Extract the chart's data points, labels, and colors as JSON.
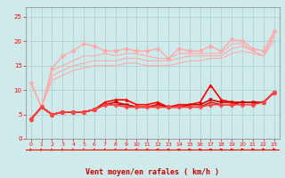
{
  "x": [
    0,
    1,
    2,
    3,
    4,
    5,
    6,
    7,
    8,
    9,
    10,
    11,
    12,
    13,
    14,
    15,
    16,
    17,
    18,
    19,
    20,
    21,
    22,
    23
  ],
  "lines": [
    {
      "y": [
        11.5,
        6.5,
        14.5,
        17.0,
        18.0,
        19.5,
        19.0,
        18.0,
        18.0,
        18.5,
        18.0,
        18.0,
        18.5,
        16.5,
        18.5,
        18.0,
        18.0,
        19.0,
        18.0,
        20.5,
        20.0,
        18.5,
        18.0,
        22.0
      ],
      "color": "#ffaaaa",
      "marker": "D",
      "markersize": 2.5,
      "linewidth": 1.0
    },
    {
      "y": [
        11.5,
        6.5,
        14.0,
        15.0,
        16.0,
        17.0,
        17.0,
        17.5,
        17.0,
        17.5,
        17.5,
        17.0,
        16.5,
        16.5,
        17.5,
        17.5,
        17.5,
        17.5,
        17.5,
        19.5,
        19.5,
        18.0,
        17.0,
        21.5
      ],
      "color": "#ffaaaa",
      "marker": null,
      "markersize": 0,
      "linewidth": 0.8
    },
    {
      "y": [
        11.5,
        6.5,
        13.0,
        14.0,
        15.0,
        15.5,
        16.0,
        16.0,
        16.0,
        16.5,
        16.5,
        16.0,
        16.0,
        16.0,
        16.5,
        17.0,
        17.0,
        17.0,
        17.0,
        18.5,
        19.0,
        18.0,
        17.0,
        21.0
      ],
      "color": "#ffaaaa",
      "marker": null,
      "markersize": 0,
      "linewidth": 0.8
    },
    {
      "y": [
        11.5,
        6.5,
        12.0,
        13.0,
        14.0,
        14.5,
        15.0,
        15.0,
        15.0,
        15.5,
        15.5,
        15.0,
        15.0,
        15.0,
        15.5,
        16.0,
        16.0,
        16.5,
        16.5,
        17.5,
        18.0,
        17.5,
        17.0,
        20.0
      ],
      "color": "#ffaaaa",
      "marker": null,
      "markersize": 0,
      "linewidth": 0.8
    },
    {
      "y": [
        4.0,
        6.5,
        5.0,
        5.5,
        5.5,
        5.5,
        6.0,
        7.5,
        8.0,
        8.0,
        7.0,
        7.0,
        7.5,
        6.5,
        7.0,
        7.0,
        7.5,
        11.0,
        8.0,
        7.5,
        7.5,
        7.5,
        7.5,
        9.5
      ],
      "color": "#ff0000",
      "marker": "^",
      "markersize": 2.5,
      "linewidth": 1.2
    },
    {
      "y": [
        4.0,
        6.5,
        5.0,
        5.5,
        5.5,
        5.5,
        6.0,
        7.0,
        7.5,
        7.0,
        6.5,
        6.5,
        7.0,
        6.5,
        6.5,
        7.0,
        7.0,
        8.0,
        7.5,
        7.5,
        7.5,
        7.5,
        7.5,
        9.5
      ],
      "color": "#cc0000",
      "marker": "v",
      "markersize": 2.5,
      "linewidth": 1.2
    },
    {
      "y": [
        4.0,
        6.5,
        5.0,
        5.5,
        5.5,
        5.5,
        6.0,
        7.0,
        7.0,
        7.0,
        6.5,
        6.5,
        6.5,
        6.5,
        6.5,
        6.5,
        6.5,
        7.5,
        7.0,
        7.0,
        7.5,
        7.5,
        7.5,
        9.5
      ],
      "color": "#cc0000",
      "marker": null,
      "markersize": 0,
      "linewidth": 1.0
    },
    {
      "y": [
        4.0,
        6.5,
        5.0,
        5.5,
        5.5,
        5.5,
        6.0,
        7.0,
        7.0,
        6.5,
        6.5,
        6.5,
        6.5,
        6.5,
        6.5,
        6.5,
        6.5,
        7.0,
        7.0,
        7.0,
        7.0,
        7.0,
        7.5,
        9.5
      ],
      "color": "#ff4444",
      "marker": "D",
      "markersize": 2.5,
      "linewidth": 1.2
    }
  ],
  "xlabel": "Vent moyen/en rafales ( km/h )",
  "xlim": [
    -0.5,
    23.5
  ],
  "ylim": [
    0,
    27
  ],
  "yticks": [
    0,
    5,
    10,
    15,
    20,
    25
  ],
  "xticks": [
    0,
    1,
    2,
    3,
    4,
    5,
    6,
    7,
    8,
    9,
    10,
    11,
    12,
    13,
    14,
    15,
    16,
    17,
    18,
    19,
    20,
    21,
    22,
    23
  ],
  "bg_color": "#ceeaea",
  "grid_color": "#aacccc",
  "tick_color": "#ff0000",
  "label_color": "#cc0000",
  "arrow_color": "#ff0000"
}
